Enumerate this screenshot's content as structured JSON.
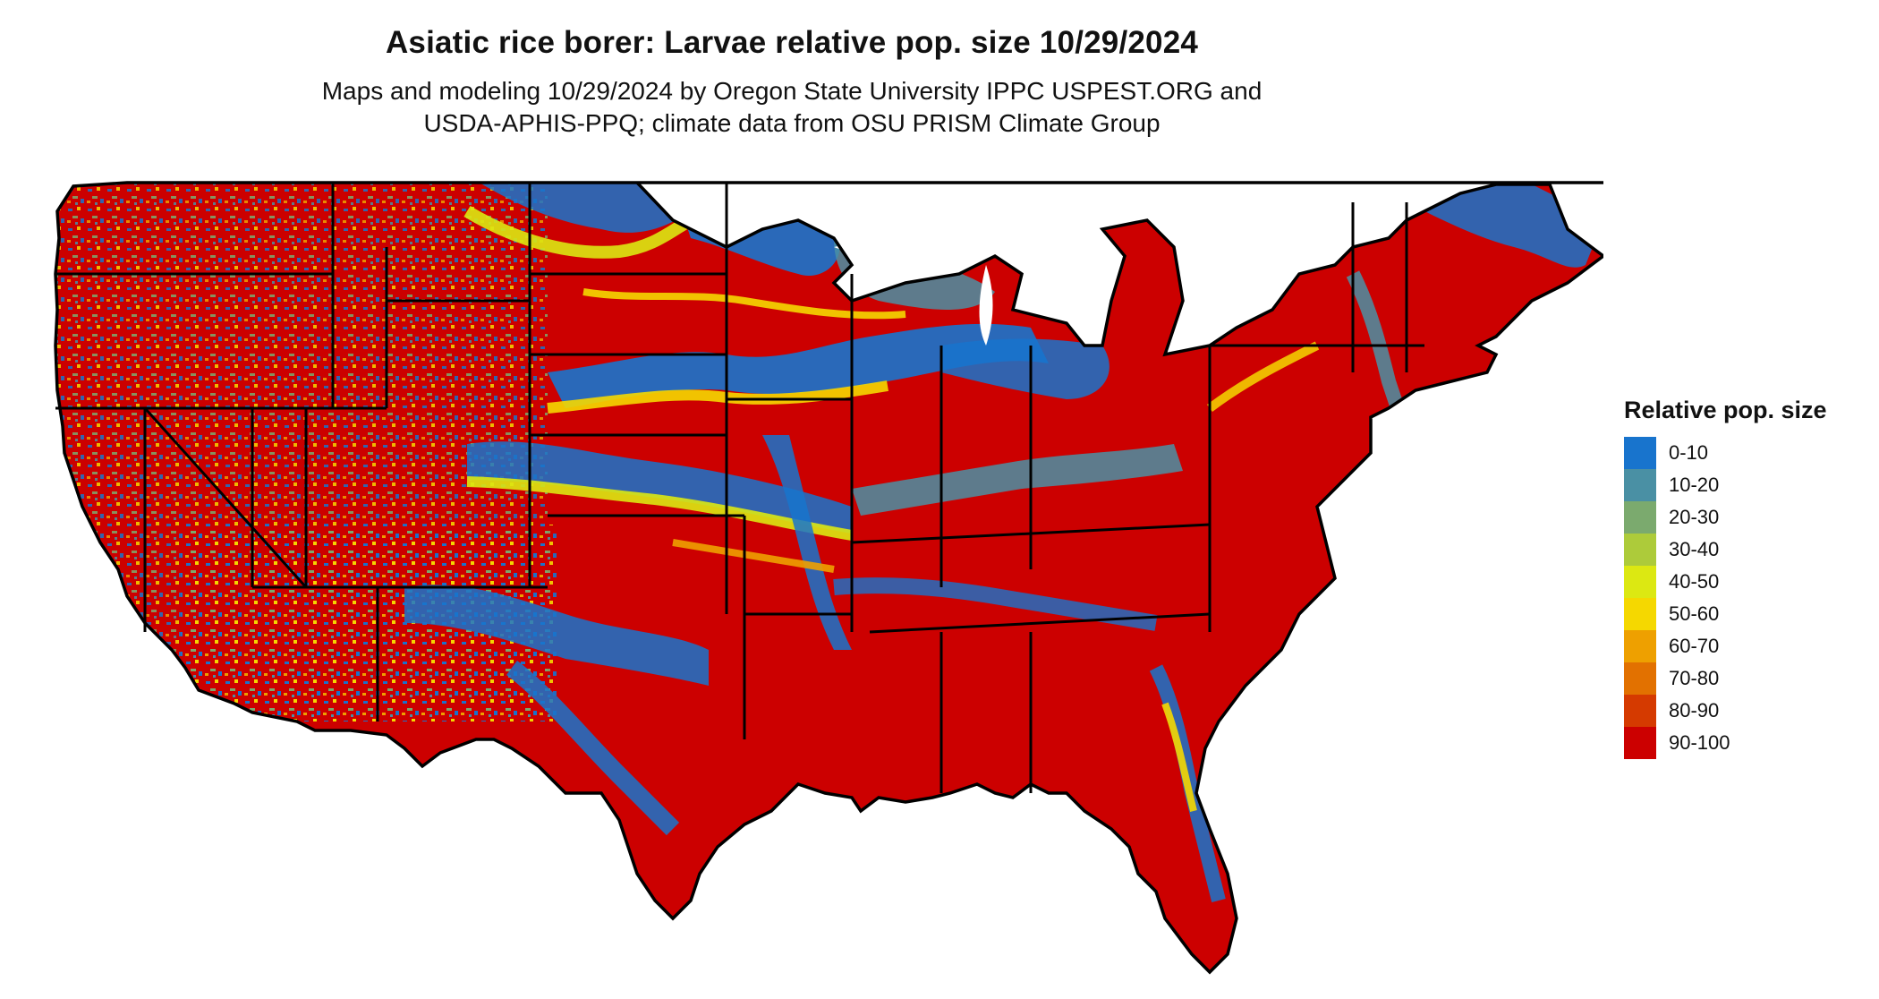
{
  "title": "Asiatic rice borer: Larvae relative pop. size 10/29/2024",
  "subtitle_line1": "Maps and modeling 10/29/2024 by Oregon State University IPPC USPEST.ORG and",
  "subtitle_line2": "USDA-APHIS-PPQ; climate data from OSU PRISM Climate Group",
  "legend": {
    "title": "Relative pop. size",
    "items": [
      {
        "label": "0-10",
        "color": "#1874CD"
      },
      {
        "label": "10-20",
        "color": "#4A90A4"
      },
      {
        "label": "20-30",
        "color": "#7BAA6E"
      },
      {
        "label": "30-40",
        "color": "#ADCB3A"
      },
      {
        "label": "40-50",
        "color": "#DCE812"
      },
      {
        "label": "50-60",
        "color": "#F5D800"
      },
      {
        "label": "60-70",
        "color": "#EEA000"
      },
      {
        "label": "70-80",
        "color": "#E27100"
      },
      {
        "label": "80-90",
        "color": "#D53A00"
      },
      {
        "label": "90-100",
        "color": "#CC0000"
      }
    ]
  },
  "map": {
    "region": "Contiguous United States",
    "boundary_color": "#000000",
    "dominant_class": "90-100"
  }
}
